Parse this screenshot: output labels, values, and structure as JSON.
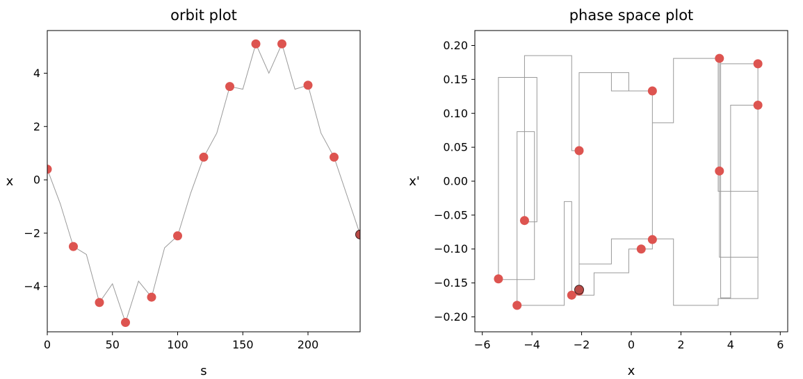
{
  "chart_data": [
    {
      "type": "line",
      "title": "orbit plot",
      "xlabel": "s",
      "ylabel": "x",
      "xlim": [
        0,
        240
      ],
      "ylim": [
        -5.7,
        5.6
      ],
      "xticks": [
        0,
        50,
        100,
        150,
        200
      ],
      "yticks": [
        -4,
        -2,
        0,
        2,
        4
      ],
      "xtick_labels": [
        "0",
        "50",
        "100",
        "150",
        "200"
      ],
      "ytick_labels": [
        "−4",
        "−2",
        "0",
        "2",
        "4"
      ],
      "line": {
        "x": [
          0,
          10,
          20,
          30,
          40,
          50,
          60,
          70,
          80,
          90,
          100,
          110,
          120,
          130,
          140,
          150,
          160,
          170,
          180,
          190,
          200,
          210,
          220,
          230,
          240
        ],
        "y": [
          0.4,
          -0.9,
          -2.5,
          -2.8,
          -4.6,
          -3.9,
          -5.35,
          -3.8,
          -4.4,
          -2.55,
          -2.1,
          -0.5,
          0.85,
          1.75,
          3.5,
          3.4,
          5.1,
          4.0,
          5.1,
          3.4,
          3.55,
          1.75,
          0.85,
          -0.6,
          -2.05
        ]
      },
      "points": {
        "x": [
          0,
          20,
          40,
          60,
          80,
          100,
          120,
          140,
          160,
          180,
          200,
          220,
          240
        ],
        "y": [
          0.4,
          -2.5,
          -4.6,
          -5.35,
          -4.4,
          -2.1,
          0.85,
          3.5,
          5.1,
          5.1,
          3.55,
          0.85,
          -2.05
        ]
      },
      "highlight": {
        "x": 240,
        "y": -2.05
      },
      "colors": {
        "point": "#dd5450",
        "line": "#999999",
        "highlight": "#b94a46"
      }
    },
    {
      "type": "scatter",
      "title": "phase space plot",
      "xlabel": "x",
      "ylabel": "x'",
      "xlim": [
        -6.3,
        6.3
      ],
      "ylim": [
        -0.222,
        0.222
      ],
      "xticks": [
        -6,
        -4,
        -2,
        0,
        2,
        4,
        6
      ],
      "yticks": [
        -0.2,
        -0.15,
        -0.1,
        -0.05,
        0.0,
        0.05,
        0.1,
        0.15,
        0.2
      ],
      "xtick_labels": [
        "−6",
        "−4",
        "−2",
        "0",
        "2",
        "4",
        "6"
      ],
      "ytick_labels": [
        "−0.20",
        "−0.15",
        "−0.10",
        "−0.05",
        "0.00",
        "0.05",
        "0.10",
        "0.15",
        "0.20"
      ],
      "path": {
        "x": [
          -2.1,
          -2.4,
          -2.4,
          -4.3,
          -4.3,
          -3.8,
          -3.8,
          -5.35,
          -5.35,
          -3.9,
          -3.9,
          -4.6,
          -4.6,
          -2.7,
          -2.7,
          -2.4,
          -2.4,
          -2.1,
          -2.1,
          -0.8,
          -0.8,
          0.4,
          0.4,
          0.85,
          0.85,
          1.7,
          1.7,
          3.5,
          3.5,
          5.1,
          5.1,
          3.6,
          3.6,
          4.0,
          4.0,
          5.1,
          5.1,
          3.55,
          3.55,
          1.7,
          1.7,
          0.85,
          0.85,
          -0.8,
          -0.8,
          -2.1,
          -2.1,
          -1.5,
          -1.5,
          -0.1,
          -0.1,
          0.85,
          0.85,
          1.7,
          1.7,
          3.5,
          3.5,
          5.1,
          5.1,
          3.6,
          3.6,
          1.7,
          1.7,
          0.85,
          0.85,
          -0.1,
          -0.1,
          -2.1
        ],
        "y": [
          0.045,
          0.045,
          0.185,
          0.185,
          -0.06,
          -0.06,
          0.153,
          0.153,
          -0.145,
          -0.145,
          0.073,
          0.073,
          -0.183,
          -0.183,
          -0.03,
          -0.03,
          -0.168,
          -0.168,
          0.16,
          0.16,
          0.133,
          0.133,
          0.133,
          0.133,
          0.086,
          0.086,
          0.181,
          0.181,
          -0.015,
          -0.015,
          0.173,
          0.173,
          -0.172,
          -0.172,
          0.112,
          0.112,
          -0.112,
          -0.112,
          0.181,
          0.181,
          0.086,
          0.086,
          -0.085,
          -0.085,
          -0.122,
          -0.122,
          -0.168,
          -0.168,
          -0.135,
          -0.135,
          -0.1,
          -0.1,
          -0.085,
          -0.085,
          -0.183,
          -0.183,
          -0.173,
          -0.173,
          0.173,
          0.173,
          0.181,
          0.181,
          0.086,
          0.086,
          0.133,
          0.133,
          0.16,
          0.16
        ]
      },
      "points": {
        "x": [
          -2.1,
          -4.3,
          -5.35,
          -4.6,
          -2.4,
          -2.1,
          0.4,
          0.85,
          0.85,
          3.55,
          3.55,
          5.1,
          5.1
        ],
        "y": [
          0.045,
          -0.058,
          -0.144,
          -0.183,
          -0.168,
          -0.162,
          -0.1,
          -0.086,
          0.133,
          0.015,
          0.181,
          0.173,
          0.112
        ]
      },
      "highlight": {
        "x": -2.1,
        "y": -0.16
      },
      "colors": {
        "point": "#dd5450",
        "line": "#999999",
        "highlight": "#b94a46"
      }
    }
  ]
}
